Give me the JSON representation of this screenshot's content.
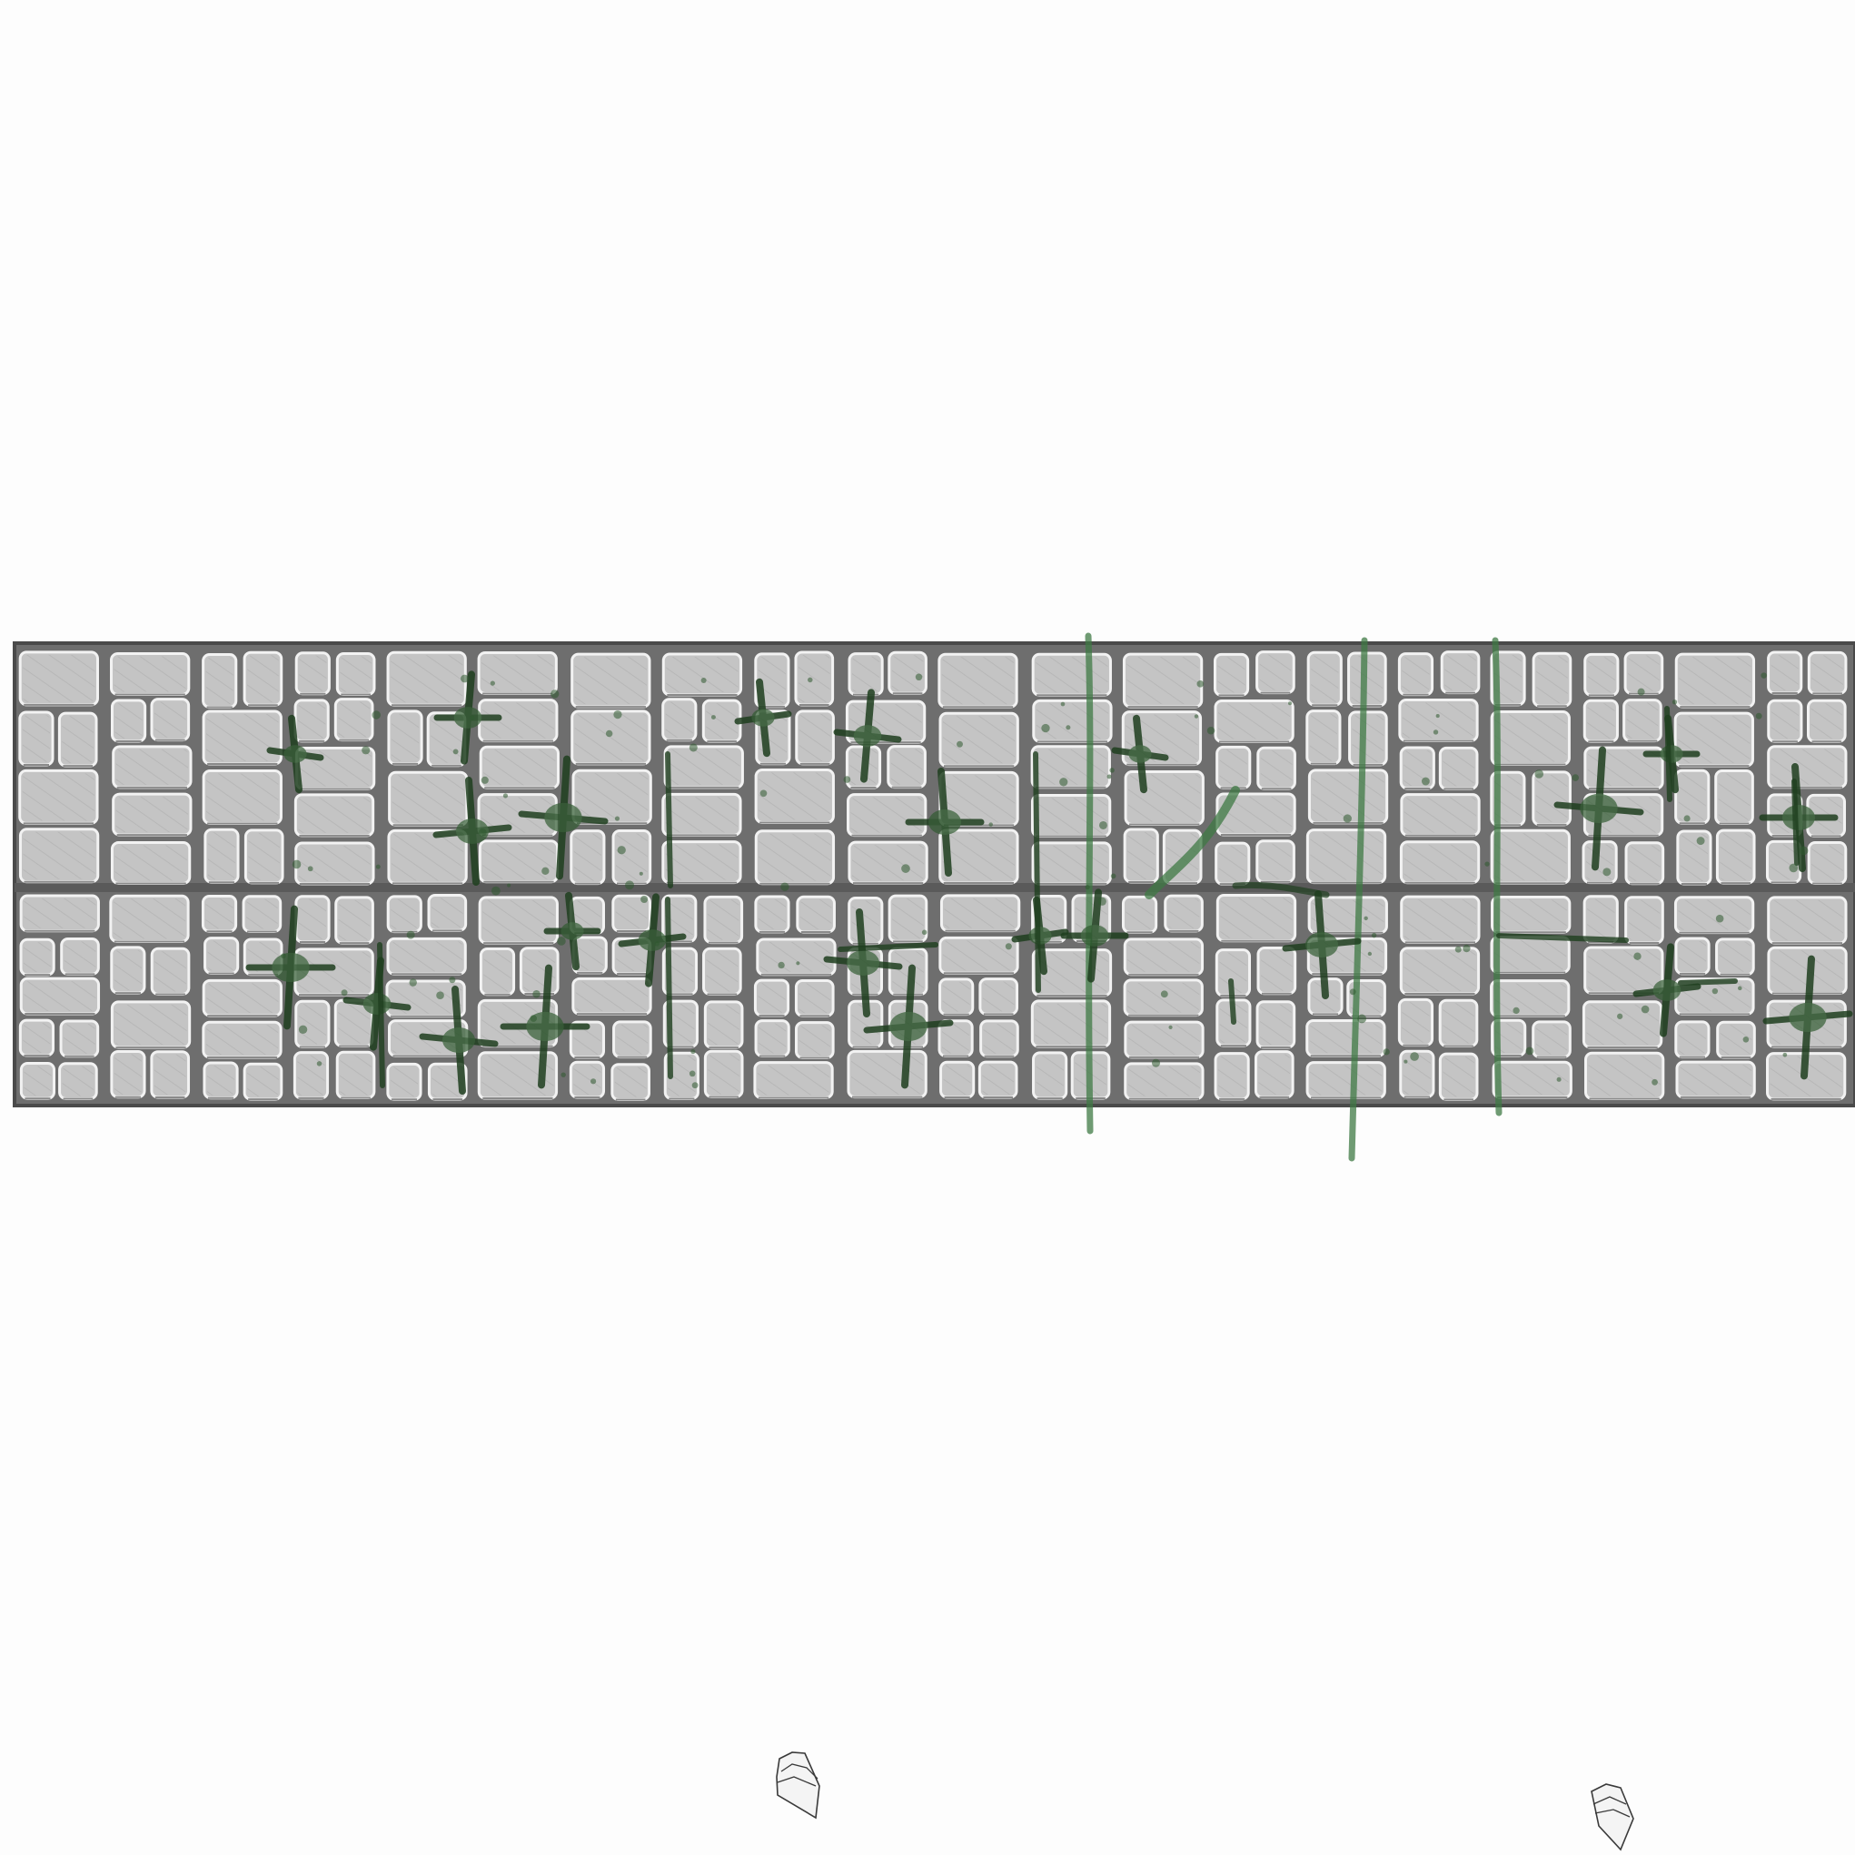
{
  "canvas": {
    "background": "#fdfdfd"
  },
  "wall": {
    "name": "stone-brick-wall-strip",
    "rows": 2,
    "columns": 20,
    "colors": {
      "frame": "#4a4a4a",
      "mortar": "#6e6e6e",
      "brick_fill": "#c4c4c4",
      "brick_highlight": "#f2f2f2",
      "brick_shadow": "#8a8a8a",
      "hatch": "#9a9a9a"
    }
  },
  "vegetation": {
    "colors": {
      "moss_dark": "#1f3f1f",
      "moss_mid": "#2f5a30",
      "vine": "#3f7a44"
    },
    "hanging_vines": 3,
    "moss_patches": 24
  },
  "debris": {
    "items": [
      "small-rock",
      "small-rock"
    ],
    "colors": {
      "outline": "#3a3a3a",
      "fill": "#f2f2f2"
    }
  }
}
